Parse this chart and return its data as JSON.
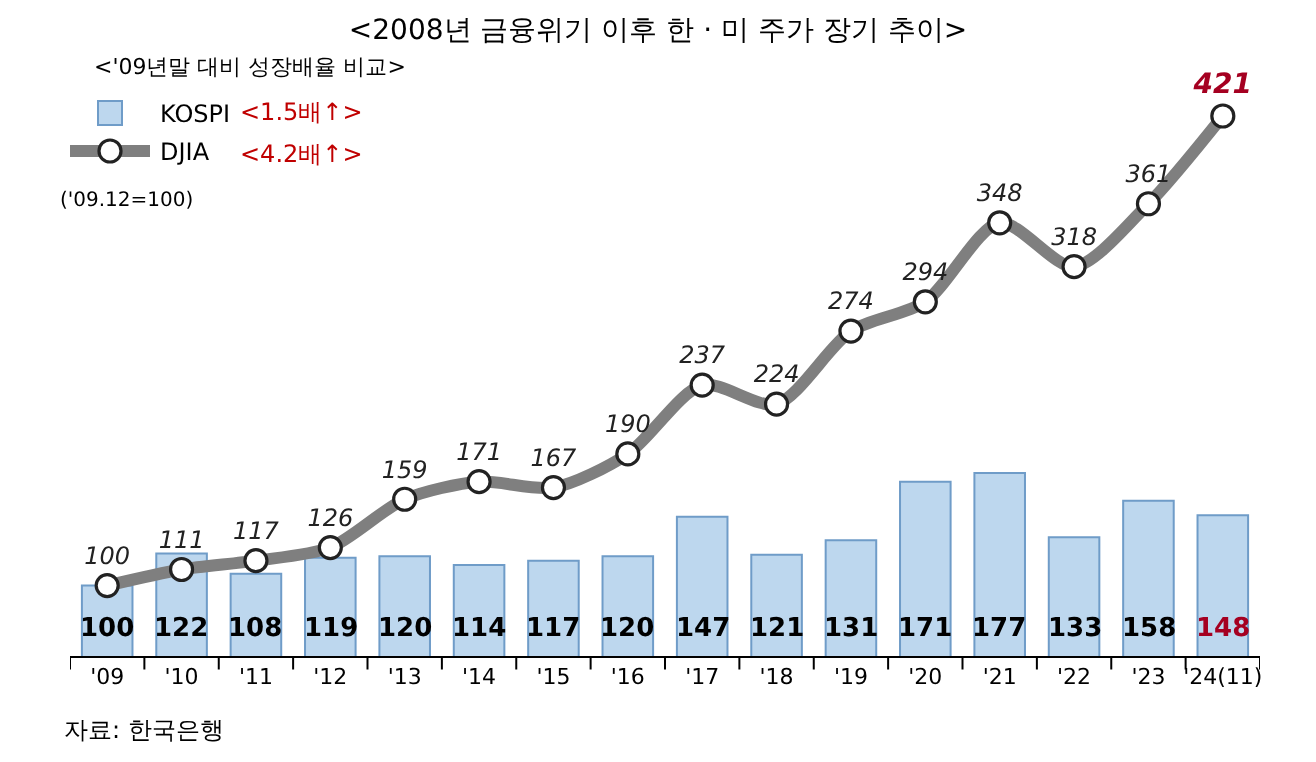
{
  "chart_data": {
    "type": "bar",
    "title": "<2008년 금융위기 이후 한 · 미 주가 장기 추이>",
    "subtitle": "<'09년말 대비 성장배율 비교>",
    "categories": [
      "'09",
      "'10",
      "'11",
      "'12",
      "'13",
      "'14",
      "'15",
      "'16",
      "'17",
      "'18",
      "'19",
      "'20",
      "'21",
      "'22",
      "'23",
      "'24(11)"
    ],
    "series": [
      {
        "name": "KOSPI",
        "color": "#bdd7ee",
        "values": [
          100,
          122,
          108,
          119,
          120,
          114,
          117,
          120,
          147,
          121,
          131,
          171,
          177,
          133,
          158,
          148
        ]
      },
      {
        "name": "DJIA",
        "type": "line",
        "color": "#7f7f7f",
        "values": [
          100,
          111,
          117,
          126,
          159,
          171,
          167,
          190,
          237,
          224,
          274,
          294,
          348,
          318,
          361,
          421
        ]
      }
    ],
    "tick_labels": "x",
    "data_labels": true,
    "legend": "top left",
    "marker": "circle",
    "grid": false,
    "annotations": [
      "<1.5배↑>",
      "<4.2배↑>",
      "('09.12=100)",
      "자료: 한국은행"
    ]
  }
}
